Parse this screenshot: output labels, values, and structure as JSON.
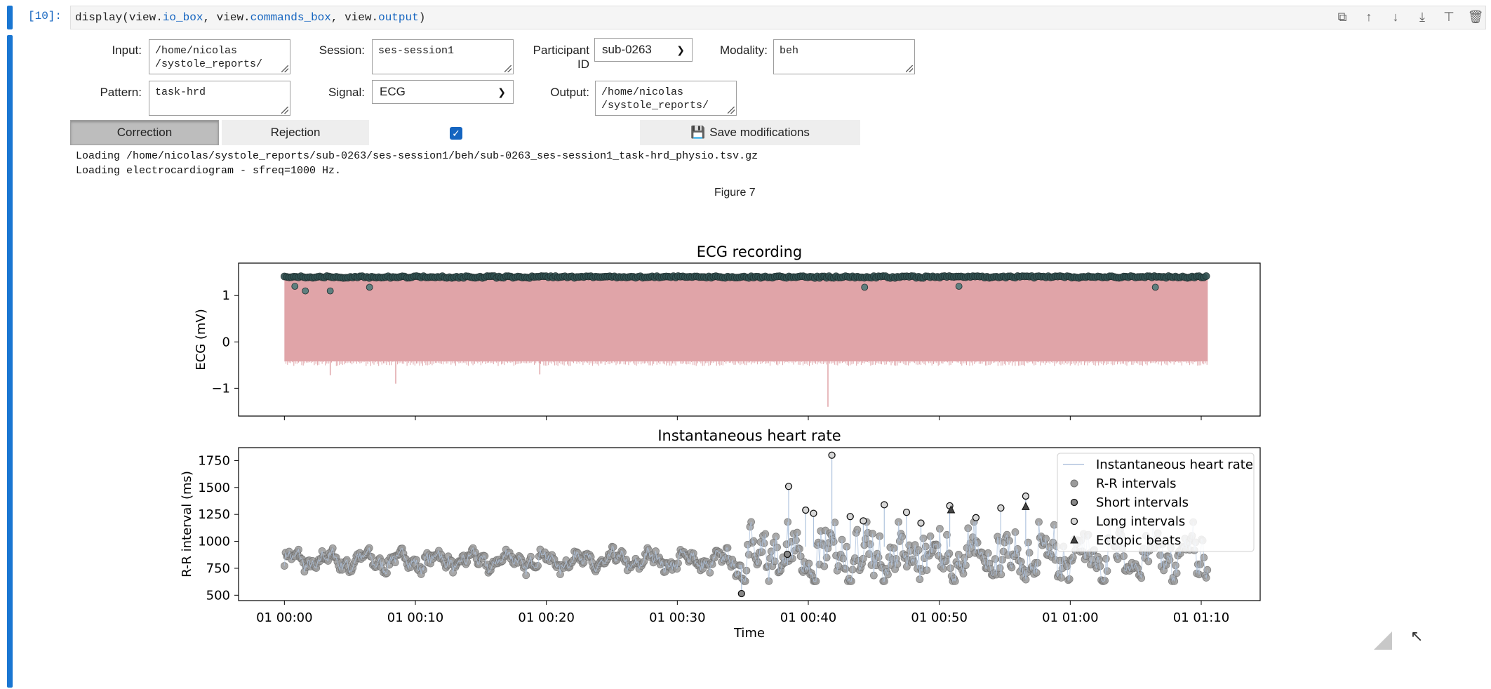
{
  "cell": {
    "prompt": "[10]:",
    "code_prefix": "display(view.",
    "code_io": "io_box",
    "code_mid1": ", view.",
    "code_cmd": "commands_box",
    "code_mid2": ", view.",
    "code_out": "output",
    "code_suffix": ")"
  },
  "toolbar": {
    "icons": [
      "copy-icon",
      "move-up-icon",
      "move-down-icon",
      "insert-below-icon",
      "insert-above-icon",
      "delete-icon"
    ]
  },
  "io": {
    "input_label": "Input:",
    "input_value": "/home/nicolas\n/systole_reports/",
    "session_label": "Session:",
    "session_value": "ses-session1",
    "participant_label": "Participant ID",
    "participant_value": "sub-0263",
    "modality_label": "Modality:",
    "modality_value": "beh",
    "pattern_label": "Pattern:",
    "pattern_value": "task-hrd",
    "signal_label": "Signal:",
    "signal_value": "ECG",
    "output_label": "Output:",
    "output_value": "/home/nicolas\n/systole_reports/"
  },
  "commands": {
    "correction_label": "Correction",
    "rejection_label": "Rejection",
    "checkbox_checked": true,
    "save_label": "Save modifications"
  },
  "output": {
    "log_line1": "Loading /home/nicolas/systole_reports/sub-0263/ses-session1/beh/sub-0263_ses-session1_task-hrd_physio.tsv.gz",
    "log_line2": "Loading electrocardiogram - sfreq=1000 Hz.",
    "figure_title": "Figure 7"
  },
  "colors": {
    "accent": "#1976d2",
    "ecg_fill": "#e0a4a8",
    "rpeak": "#2f4f4f",
    "rr_point": "#9a9a9a",
    "hr_line": "#b0c4de"
  },
  "chart_data": [
    {
      "type": "line",
      "title": "ECG recording",
      "ylabel": "ECG (mV)",
      "ylim": [
        -1.6,
        1.7
      ],
      "yticks": [
        "1",
        "0",
        "−1"
      ],
      "series": [
        {
          "name": "ECG signal (envelope)",
          "upper": 1.38,
          "lower": -0.42,
          "dips": [
            [
              3.5,
              -0.72
            ],
            [
              8.5,
              -0.9
            ],
            [
              19.5,
              -0.7
            ],
            [
              41.5,
              -1.4
            ]
          ]
        },
        {
          "name": "R peaks",
          "level": 1.42,
          "outliers": [
            [
              0.8,
              1.2
            ],
            [
              1.6,
              1.1
            ],
            [
              3.5,
              1.1
            ],
            [
              6.5,
              1.18
            ],
            [
              44.3,
              1.18
            ],
            [
              51.5,
              1.2
            ],
            [
              66.5,
              1.18
            ]
          ]
        }
      ],
      "xlim": [
        -3.5,
        74.5
      ],
      "grid": false
    },
    {
      "type": "scatter",
      "title": "Instantaneous heart rate",
      "xlabel": "Time",
      "ylabel": "R-R interval (ms)",
      "ylim": [
        450,
        1870
      ],
      "yticks": [
        "500",
        "750",
        "1000",
        "1250",
        "1500",
        "1750"
      ],
      "x_ticks": [
        "01 00:00",
        "01 00:10",
        "01 00:20",
        "01 00:30",
        "01 00:40",
        "01 00:50",
        "01 01:00",
        "01 01:10"
      ],
      "xlim_minutes": [
        -3.5,
        74.5
      ],
      "legend": [
        "Instantaneous heart rate",
        "R-R intervals",
        "Short intervals",
        "Long intervals",
        "Ectopic beats"
      ],
      "legend_position": "upper right",
      "series": [
        {
          "name": "R-R intervals",
          "baseline_ms": 820,
          "spread_ms": 120
        },
        {
          "name": "Long intervals",
          "points": [
            [
              38.5,
              1510
            ],
            [
              41.8,
              1800
            ],
            [
              39.8,
              1290
            ],
            [
              40.4,
              1260
            ],
            [
              43.2,
              1230
            ],
            [
              44.2,
              1190
            ],
            [
              45.8,
              1340
            ],
            [
              47.5,
              1270
            ],
            [
              48.6,
              1170
            ],
            [
              50.8,
              1330
            ],
            [
              52.8,
              1220
            ],
            [
              54.7,
              1310
            ],
            [
              56.6,
              1420
            ]
          ]
        },
        {
          "name": "Short intervals",
          "points": [
            [
              34.9,
              515
            ],
            [
              38.4,
              880
            ]
          ]
        },
        {
          "name": "Ectopic beats",
          "points": [
            [
              56.6,
              1320
            ],
            [
              50.9,
              1290
            ]
          ]
        }
      ],
      "grid": false
    }
  ]
}
